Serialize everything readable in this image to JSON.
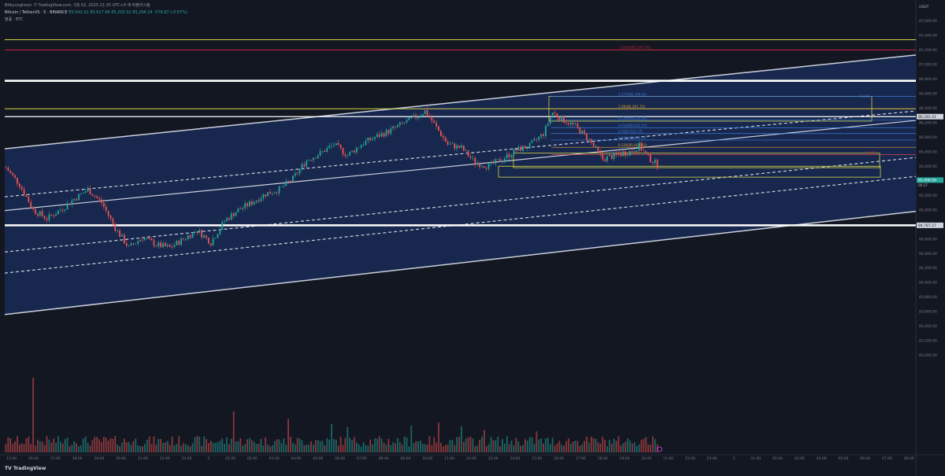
{
  "header": {
    "user_line": "Bitkyunghoon 가 TradingView.com, 3월 02, 2025 21:35 UTC+9 에 퍼블리시됨",
    "symbol_line": "Bitcoin / TetherUS · 5 · BINANCE",
    "ohlc_line": "85,542.02  85,617.96  85,202.02  85,296.24  -576.87 (-0.67%)",
    "indicator_line": "볼륨 · BTC"
  },
  "colors": {
    "background": "#131722",
    "channel_fill": "#1a2a55",
    "up": "#26a69a",
    "down": "#ef5350",
    "white_line": "#ffffff",
    "yellow_line": "#d4d44a",
    "red_line": "#c2253a",
    "fib_blue": "#3b7dd8"
  },
  "chart_data": {
    "type": "candlestick",
    "symbol": "BTC/USDT",
    "exchange": "BINANCE",
    "interval": "5",
    "currency": "USDT",
    "ylim": [
      82800,
      87800
    ],
    "y_ticks": [
      83000,
      83200,
      83400,
      83600,
      83800,
      84000,
      84200,
      84400,
      84600,
      84800,
      85000,
      85200,
      85400,
      85600,
      85800,
      86000,
      86200,
      86400,
      86600,
      86800,
      87000,
      87200,
      87400,
      87600
    ],
    "y_tick_labels": [
      "83,000.00",
      "83,200.00",
      "83,400.00",
      "83,600.00",
      "83,800.00",
      "84,000.00",
      "84,200.00",
      "84,400.00",
      "84,600.00",
      "84,800.00",
      "85,000.00",
      "85,200.00",
      "85,400.00",
      "85,600.00",
      "85,800.00",
      "86,000.00",
      "86,200.00",
      "86,400.00",
      "86,600.00",
      "86,800.00",
      "87,000.00",
      "87,200.00",
      "87,400.00",
      "87,600.00"
    ],
    "x_tick_labels": [
      "15:00",
      "16:00",
      "17:00",
      "18:00",
      "19:00",
      "20:00",
      "21:00",
      "22:00",
      "23:00",
      "2",
      "01:00",
      "02:00",
      "03:00",
      "04:00",
      "05:00",
      "06:00",
      "07:00",
      "08:00",
      "09:00",
      "10:00",
      "11:00",
      "12:00",
      "13:00",
      "14:00",
      "15:00",
      "16:00",
      "17:00",
      "18:00",
      "19:00",
      "20:00",
      "21:00",
      "22:00",
      "23:00",
      "3",
      "01:00",
      "02:00",
      "03:00",
      "04:00",
      "05:00",
      "06:00",
      "07:00",
      "08:00"
    ],
    "last_candle_index": 286,
    "total_slots": 400,
    "close_path": [
      [
        0,
        85580
      ],
      [
        6,
        85350
      ],
      [
        12,
        85000
      ],
      [
        18,
        84880
      ],
      [
        24,
        85000
      ],
      [
        30,
        85150
      ],
      [
        36,
        85280
      ],
      [
        42,
        85100
      ],
      [
        48,
        84750
      ],
      [
        54,
        84480
      ],
      [
        60,
        84620
      ],
      [
        66,
        84520
      ],
      [
        72,
        84480
      ],
      [
        78,
        84600
      ],
      [
        84,
        84720
      ],
      [
        90,
        84550
      ],
      [
        96,
        84850
      ],
      [
        102,
        85000
      ],
      [
        108,
        85100
      ],
      [
        114,
        85220
      ],
      [
        120,
        85280
      ],
      [
        126,
        85430
      ],
      [
        132,
        85680
      ],
      [
        138,
        85780
      ],
      [
        144,
        85900
      ],
      [
        150,
        85750
      ],
      [
        156,
        85900
      ],
      [
        162,
        86000
      ],
      [
        168,
        86080
      ],
      [
        174,
        86180
      ],
      [
        180,
        86280
      ],
      [
        184,
        86360
      ],
      [
        188,
        86180
      ],
      [
        194,
        85900
      ],
      [
        200,
        85850
      ],
      [
        206,
        85650
      ],
      [
        212,
        85600
      ],
      [
        218,
        85700
      ],
      [
        224,
        85820
      ],
      [
        230,
        85880
      ],
      [
        236,
        86050
      ],
      [
        240,
        86340
      ],
      [
        244,
        86250
      ],
      [
        250,
        86150
      ],
      [
        256,
        85960
      ],
      [
        262,
        85700
      ],
      [
        268,
        85750
      ],
      [
        274,
        85800
      ],
      [
        278,
        85880
      ],
      [
        282,
        85720
      ],
      [
        286,
        85620
      ]
    ],
    "volume_note": "volume bars at bottom pane",
    "volume_spikes": [
      [
        12,
        1.0
      ],
      [
        100,
        0.55
      ],
      [
        124,
        0.45
      ],
      [
        143,
        0.38
      ],
      [
        150,
        0.34
      ],
      [
        178,
        0.36
      ],
      [
        190,
        0.4
      ],
      [
        200,
        0.35
      ],
      [
        210,
        0.3
      ],
      [
        233,
        0.28
      ],
      [
        280,
        0.18
      ]
    ],
    "price_labels": {
      "current_price": "85,408.99",
      "current_countdown": "00:17",
      "resistance_level": "86,282.41",
      "support_level": "84,787.27",
      "currency_unit": "USDT"
    },
    "horizontal_lines": [
      {
        "price": 87340,
        "color": "yellow",
        "label": ""
      },
      {
        "price": 87200,
        "color": "red",
        "label": "1.618(87,197.91)"
      },
      {
        "price": 86775,
        "color": "white",
        "label": ""
      },
      {
        "price": 86390,
        "color": "yellow",
        "label": ""
      },
      {
        "price": 86282.41,
        "color": "white",
        "label": ""
      },
      {
        "price": 84787.27,
        "color": "white",
        "label": ""
      }
    ],
    "fib_levels": [
      {
        "label": "1.272(86,789.91)",
        "price": 86560,
        "color": "#3b7dd8"
      },
      {
        "label": "1.00(86,391.72)",
        "price": 86390,
        "color": "#d4a030"
      },
      {
        "label": "0.786(86,219.54)",
        "price": 86235,
        "color": "#3b7dd8"
      },
      {
        "label": "0.618(86,052.57)",
        "price": 86130,
        "color": "#3b7dd8"
      },
      {
        "label": "0.5(85,932.37)",
        "price": 86050,
        "color": "#3b7dd8"
      },
      {
        "label": "0.382(85,812.17)",
        "price": 85960,
        "color": "#3b7dd8"
      },
      {
        "label": "0.236(85,663.42)",
        "price": 85860,
        "color": "#d4a030"
      },
      {
        "label": "0(85,423.78)",
        "price": 85760,
        "color": "#ef5350"
      }
    ],
    "box_labels": [
      "-0.236",
      "0.786",
      "-0.618"
    ],
    "channel": {
      "upper": [
        [
          0,
          85840
        ],
        [
          400,
          87130
        ]
      ],
      "lower": [
        [
          0,
          83560
        ],
        [
          400,
          84980
        ]
      ],
      "mid_upper": [
        [
          0,
          85180
        ],
        [
          400,
          86360
        ]
      ],
      "middle": [
        [
          0,
          84990
        ],
        [
          400,
          86230
        ]
      ],
      "mid_lower": [
        [
          0,
          84130
        ],
        [
          400,
          85460
        ]
      ]
    }
  }
}
